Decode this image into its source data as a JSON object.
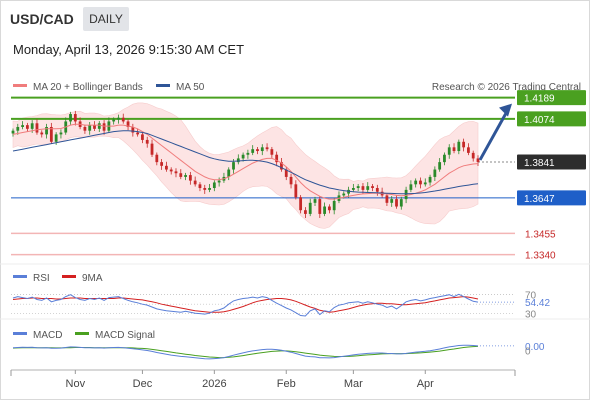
{
  "header": {
    "symbol": "USD/CAD",
    "period": "DAILY",
    "datetime": "Monday, April 13, 2026 9:15:30 AM CET"
  },
  "colors": {
    "bull": "#2a8a2a",
    "bear": "#c62828",
    "ma20": "#f07c7c",
    "bollinger_fill": "#fde0e0",
    "ma50": "#2f5597",
    "resistance": "#4aa020",
    "support_blue": "#1f5fc8",
    "support_red": "#f3b5b5",
    "current_price_bg": "#2d2d2d",
    "rsi": "#5a7fd8",
    "rsi_ma": "#d42020",
    "macd": "#5a7fd8",
    "macd_signal": "#4aa020"
  },
  "chart_data": [
    {
      "type": "candlestick",
      "name": "price",
      "legend": [
        {
          "label": "MA 20 + Bollinger Bands",
          "color": "#f07c7c"
        },
        {
          "label": "MA 50",
          "color": "#2f5597"
        }
      ],
      "source_note": "Research © 2026 Trading Central",
      "x_ticks": [
        "Nov",
        "Dec",
        "2026",
        "Feb",
        "Mar",
        "Apr"
      ],
      "ylim": [
        1.33,
        1.423
      ],
      "levels": [
        {
          "value": 1.4189,
          "label": "1.4189",
          "style": "resistance"
        },
        {
          "value": 1.4074,
          "label": "1.4074",
          "style": "resistance"
        },
        {
          "value": 1.3841,
          "label": "1.3841",
          "style": "current"
        },
        {
          "value": 1.3647,
          "label": "1.3647",
          "style": "support_blue"
        },
        {
          "value": 1.3455,
          "label": "1.3455",
          "style": "support_red"
        },
        {
          "value": 1.334,
          "label": "1.3340",
          "style": "support_red"
        }
      ],
      "closes": [
        1.401,
        1.403,
        1.404,
        1.402,
        1.405,
        1.4,
        1.399,
        1.403,
        1.395,
        1.399,
        1.4,
        1.406,
        1.41,
        1.406,
        1.403,
        1.401,
        1.404,
        1.402,
        1.405,
        1.401,
        1.406,
        1.407,
        1.408,
        1.406,
        1.403,
        1.4,
        1.399,
        1.396,
        1.394,
        1.388,
        1.384,
        1.382,
        1.38,
        1.379,
        1.378,
        1.376,
        1.377,
        1.374,
        1.372,
        1.37,
        1.369,
        1.37,
        1.373,
        1.374,
        1.376,
        1.38,
        1.384,
        1.386,
        1.388,
        1.389,
        1.391,
        1.39,
        1.392,
        1.391,
        1.388,
        1.384,
        1.38,
        1.376,
        1.372,
        1.365,
        1.358,
        1.356,
        1.362,
        1.364,
        1.356,
        1.36,
        1.358,
        1.363,
        1.366,
        1.367,
        1.369,
        1.37,
        1.371,
        1.369,
        1.371,
        1.37,
        1.368,
        1.366,
        1.362,
        1.364,
        1.36,
        1.364,
        1.369,
        1.372,
        1.374,
        1.372,
        1.373,
        1.376,
        1.38,
        1.384,
        1.388,
        1.392,
        1.39,
        1.395,
        1.392,
        1.389,
        1.386,
        1.3841
      ],
      "ma20": [
        1.399,
        1.3995,
        1.4,
        1.4005,
        1.401,
        1.4015,
        1.4018,
        1.402,
        1.402,
        1.402,
        1.4022,
        1.403,
        1.404,
        1.4045,
        1.4045,
        1.404,
        1.404,
        1.404,
        1.404,
        1.4035,
        1.4035,
        1.4035,
        1.404,
        1.404,
        1.4035,
        1.403,
        1.402,
        1.4005,
        1.399,
        1.397,
        1.395,
        1.393,
        1.391,
        1.389,
        1.387,
        1.385,
        1.383,
        1.381,
        1.379,
        1.3775,
        1.376,
        1.375,
        1.3745,
        1.3745,
        1.375,
        1.376,
        1.3775,
        1.379,
        1.3805,
        1.382,
        1.3835,
        1.3845,
        1.3855,
        1.386,
        1.386,
        1.385,
        1.3835,
        1.3815,
        1.379,
        1.376,
        1.373,
        1.3705,
        1.3685,
        1.367,
        1.3655,
        1.3645,
        1.364,
        1.364,
        1.3645,
        1.365,
        1.3655,
        1.366,
        1.3665,
        1.3668,
        1.367,
        1.3672,
        1.3672,
        1.367,
        1.3668,
        1.3665,
        1.366,
        1.3658,
        1.366,
        1.3665,
        1.3672,
        1.368,
        1.369,
        1.3705,
        1.372,
        1.374,
        1.376,
        1.378,
        1.3795,
        1.381,
        1.382,
        1.3825,
        1.383,
        1.3832
      ],
      "ma50": [
        1.39,
        1.3905,
        1.391,
        1.3915,
        1.392,
        1.3925,
        1.393,
        1.3935,
        1.394,
        1.3945,
        1.395,
        1.3955,
        1.396,
        1.3965,
        1.397,
        1.3975,
        1.398,
        1.3985,
        1.399,
        1.3995,
        1.4,
        1.4005,
        1.4008,
        1.401,
        1.401,
        1.4008,
        1.4005,
        1.4,
        1.3995,
        1.3985,
        1.3975,
        1.3965,
        1.3955,
        1.3945,
        1.3935,
        1.3925,
        1.3915,
        1.3905,
        1.3895,
        1.3885,
        1.3875,
        1.3865,
        1.3858,
        1.3852,
        1.3848,
        1.3845,
        1.3845,
        1.3846,
        1.3848,
        1.385,
        1.385,
        1.3848,
        1.3845,
        1.384,
        1.3832,
        1.3822,
        1.381,
        1.3798,
        1.3785,
        1.3772,
        1.3758,
        1.3745,
        1.3735,
        1.3725,
        1.3716,
        1.3708,
        1.37,
        1.3695,
        1.369,
        1.3686,
        1.3683,
        1.368,
        1.3678,
        1.3677,
        1.3676,
        1.3675,
        1.3674,
        1.3673,
        1.3672,
        1.3671,
        1.367,
        1.3669,
        1.3669,
        1.367,
        1.3671,
        1.3673,
        1.3676,
        1.368,
        1.3684,
        1.3688,
        1.3693,
        1.3698,
        1.3703,
        1.3708,
        1.3712,
        1.3716,
        1.372,
        1.3723
      ]
    },
    {
      "type": "line",
      "name": "rsi",
      "legend": [
        {
          "label": "RSI",
          "color": "#5a7fd8"
        },
        {
          "label": "9MA",
          "color": "#d42020"
        }
      ],
      "ylim": [
        25,
        80
      ],
      "ticks": [
        "70",
        "30"
      ],
      "last_value": "54.42",
      "series": [
        {
          "name": "RSI",
          "values": [
            63,
            66,
            64,
            62,
            65,
            60,
            58,
            63,
            55,
            58,
            60,
            66,
            70,
            64,
            60,
            58,
            62,
            60,
            63,
            58,
            64,
            65,
            66,
            62,
            58,
            55,
            53,
            50,
            48,
            44,
            40,
            38,
            36,
            35,
            34,
            33,
            35,
            33,
            31,
            30,
            29,
            31,
            36,
            38,
            42,
            50,
            57,
            60,
            62,
            63,
            65,
            63,
            66,
            64,
            58,
            52,
            47,
            42,
            38,
            32,
            26,
            25,
            36,
            40,
            28,
            36,
            34,
            43,
            48,
            50,
            53,
            54,
            55,
            52,
            55,
            53,
            50,
            48,
            43,
            46,
            40,
            47,
            55,
            58,
            60,
            57,
            59,
            62,
            64,
            66,
            68,
            70,
            66,
            71,
            66,
            61,
            56,
            54.42
          ]
        },
        {
          "name": "9MA",
          "values": [
            60,
            61,
            62,
            62,
            63,
            63,
            62,
            62,
            62,
            61,
            61,
            62,
            63,
            63,
            63,
            62,
            62,
            62,
            62,
            62,
            62,
            62,
            63,
            63,
            62,
            61,
            60,
            59,
            57,
            55,
            53,
            50,
            48,
            46,
            44,
            42,
            40,
            38,
            36,
            35,
            34,
            33,
            33,
            33,
            34,
            36,
            39,
            42,
            45,
            49,
            53,
            56,
            58,
            60,
            61,
            62,
            62,
            61,
            59,
            56,
            52,
            48,
            44,
            41,
            37,
            35,
            33,
            34,
            36,
            38,
            40,
            43,
            46,
            48,
            50,
            51,
            52,
            52,
            51,
            51,
            50,
            49,
            49,
            50,
            51,
            52,
            53,
            55,
            57,
            59,
            61,
            63,
            64,
            65,
            66,
            65,
            63,
            61
          ]
        }
      ]
    },
    {
      "type": "line",
      "name": "macd",
      "legend": [
        {
          "label": "MACD",
          "color": "#5a7fd8"
        },
        {
          "label": "MACD Signal",
          "color": "#4aa020"
        }
      ],
      "ylim": [
        -0.012,
        0.008
      ],
      "ticks": [
        "0"
      ],
      "last_value": "0.00",
      "series": [
        {
          "name": "MACD",
          "values": [
            0.002,
            0.0022,
            0.0024,
            0.0023,
            0.0024,
            0.0021,
            0.0019,
            0.0021,
            0.0016,
            0.0017,
            0.0018,
            0.0022,
            0.0027,
            0.0026,
            0.0023,
            0.002,
            0.0021,
            0.0019,
            0.0021,
            0.0018,
            0.0021,
            0.0022,
            0.0023,
            0.0021,
            0.0017,
            0.0013,
            0.0009,
            0.0004,
            -0.0001,
            -0.0008,
            -0.0016,
            -0.0023,
            -0.003,
            -0.0036,
            -0.0041,
            -0.0046,
            -0.0049,
            -0.0053,
            -0.0057,
            -0.0061,
            -0.0064,
            -0.0065,
            -0.0063,
            -0.006,
            -0.0055,
            -0.0047,
            -0.0037,
            -0.0028,
            -0.0019,
            -0.0011,
            -0.0004,
            0.0001,
            0.0006,
            0.0009,
            0.0009,
            0.0006,
            0.0001,
            -0.0006,
            -0.0014,
            -0.0024,
            -0.0035,
            -0.0044,
            -0.0048,
            -0.005,
            -0.0056,
            -0.0057,
            -0.0058,
            -0.0055,
            -0.005,
            -0.0045,
            -0.004,
            -0.0035,
            -0.003,
            -0.0027,
            -0.0023,
            -0.0021,
            -0.002,
            -0.002,
            -0.0023,
            -0.0024,
            -0.0027,
            -0.0027,
            -0.0023,
            -0.0018,
            -0.0013,
            -0.001,
            -0.0007,
            -0.0002,
            0.0004,
            0.0011,
            0.0019,
            0.0027,
            0.0032,
            0.0038,
            0.004,
            0.004,
            0.0038,
            0.0035
          ]
        },
        {
          "name": "MACD Signal",
          "values": [
            0.0018,
            0.0019,
            0.002,
            0.0021,
            0.0021,
            0.0021,
            0.0021,
            0.0021,
            0.002,
            0.0019,
            0.0019,
            0.002,
            0.0021,
            0.0022,
            0.0022,
            0.0022,
            0.0022,
            0.0021,
            0.0021,
            0.0021,
            0.0021,
            0.0021,
            0.0021,
            0.0021,
            0.002,
            0.0019,
            0.0017,
            0.0015,
            0.0012,
            0.0008,
            0.0003,
            -0.0002,
            -0.0008,
            -0.0013,
            -0.0019,
            -0.0024,
            -0.0029,
            -0.0034,
            -0.0039,
            -0.0043,
            -0.0047,
            -0.0051,
            -0.0053,
            -0.0055,
            -0.0055,
            -0.0053,
            -0.005,
            -0.0045,
            -0.004,
            -0.0034,
            -0.0028,
            -0.0022,
            -0.0017,
            -0.0012,
            -0.0008,
            -0.0005,
            -0.0004,
            -0.0004,
            -0.0006,
            -0.001,
            -0.0015,
            -0.0021,
            -0.0026,
            -0.0031,
            -0.0036,
            -0.004,
            -0.0043,
            -0.0046,
            -0.0047,
            -0.0047,
            -0.0046,
            -0.0044,
            -0.0041,
            -0.0038,
            -0.0035,
            -0.0032,
            -0.0029,
            -0.0027,
            -0.0026,
            -0.0025,
            -0.0025,
            -0.0025,
            -0.0025,
            -0.0023,
            -0.0021,
            -0.0019,
            -0.0016,
            -0.0013,
            -0.0009,
            -0.0005,
            0.0,
            0.0006,
            0.0011,
            0.0017,
            0.0022,
            0.0026,
            0.0029,
            0.0031
          ]
        }
      ]
    }
  ]
}
